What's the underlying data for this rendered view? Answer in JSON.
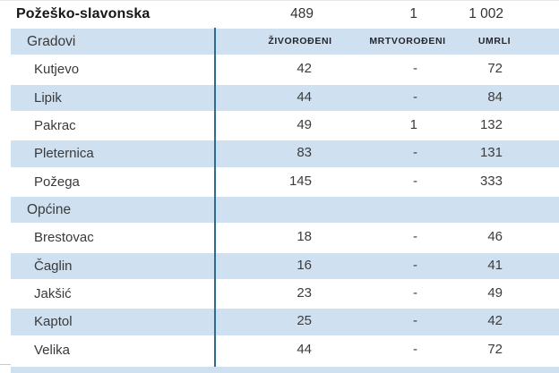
{
  "chart_data": {
    "type": "table",
    "title": "Požeško-slavonska",
    "columns": [
      "ŽIVOROĐENI",
      "MRTVOROĐENI",
      "UMRLI"
    ],
    "county": {
      "name": "Požeško-slavonska",
      "live_births": "489",
      "stillbirths": "1",
      "deaths": "1 002"
    },
    "column_headers": {
      "live_births": "ŽIVOROĐENI",
      "stillbirths": "MRTVOROĐENI",
      "deaths": "UMRLI"
    },
    "groups": [
      {
        "label": "Gradovi",
        "rows": [
          {
            "name": "Kutjevo",
            "live_births": "42",
            "stillbirths": "-",
            "deaths": "72"
          },
          {
            "name": "Lipik",
            "live_births": "44",
            "stillbirths": "-",
            "deaths": "84"
          },
          {
            "name": "Pakrac",
            "live_births": "49",
            "stillbirths": "1",
            "deaths": "132"
          },
          {
            "name": "Pleternica",
            "live_births": "83",
            "stillbirths": "-",
            "deaths": "131"
          },
          {
            "name": "Požega",
            "live_births": "145",
            "stillbirths": "-",
            "deaths": "333"
          }
        ]
      },
      {
        "label": "Općine",
        "rows": [
          {
            "name": "Brestovac",
            "live_births": "18",
            "stillbirths": "-",
            "deaths": "46"
          },
          {
            "name": "Čaglin",
            "live_births": "16",
            "stillbirths": "-",
            "deaths": "41"
          },
          {
            "name": "Jakšić",
            "live_births": "23",
            "stillbirths": "-",
            "deaths": "49"
          },
          {
            "name": "Kaptol",
            "live_births": "25",
            "stillbirths": "-",
            "deaths": "42"
          },
          {
            "name": "Velika",
            "live_births": "44",
            "stillbirths": "-",
            "deaths": "72"
          }
        ]
      }
    ],
    "colors": {
      "band_blue": "#cfe0f0",
      "accent_rule": "#2e6c8f",
      "county_text": "#161616",
      "body_text": "#3c3c3c",
      "header_text": "#25252d"
    }
  }
}
